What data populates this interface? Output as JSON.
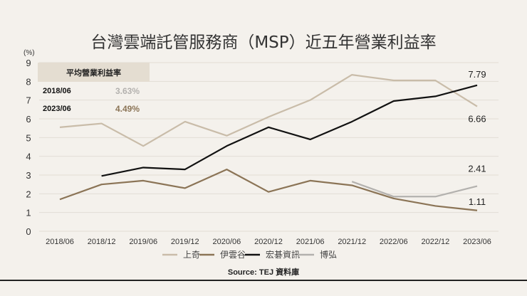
{
  "chart_data": {
    "type": "line",
    "title": "台灣雲端託管服務商（MSP）近五年營業利益率",
    "ylabel": "(%)",
    "xlabel": "",
    "ylim": [
      0,
      9
    ],
    "yticks": [
      0,
      1,
      2,
      3,
      4,
      5,
      6,
      7,
      8,
      9
    ],
    "grid": true,
    "legend_placement": "bottom",
    "categories": [
      "2018/06",
      "2018/12",
      "2019/06",
      "2019/12",
      "2020/06",
      "2020/12",
      "2021/06",
      "2021/12",
      "2022/06",
      "2022/12",
      "2023/06"
    ],
    "series": [
      {
        "name": "上奇",
        "color": "#c9bca9",
        "values": [
          5.55,
          5.75,
          4.55,
          5.85,
          5.1,
          6.1,
          7.0,
          8.35,
          8.05,
          8.05,
          6.66
        ],
        "end_label": "6.66"
      },
      {
        "name": "伊雲谷",
        "color": "#8b7456",
        "values": [
          1.7,
          2.5,
          2.7,
          2.3,
          3.3,
          2.1,
          2.7,
          2.45,
          1.75,
          1.35,
          1.11
        ],
        "end_label": "1.11"
      },
      {
        "name": "宏碁資訊",
        "color": "#111111",
        "values": [
          null,
          2.95,
          3.4,
          3.3,
          4.55,
          5.55,
          4.9,
          5.85,
          6.95,
          7.2,
          7.79
        ],
        "end_label": "7.79"
      },
      {
        "name": "博弘",
        "color": "#b3b1ae",
        "values": [
          null,
          null,
          null,
          null,
          null,
          null,
          null,
          2.65,
          1.85,
          1.85,
          2.41
        ],
        "end_label": "2.41"
      }
    ],
    "source": "Source: TEJ 資料庫",
    "inset": {
      "header": "平均營業利益率",
      "rows": [
        {
          "label": "2018/06",
          "value": "3.63%",
          "color": "#b3b1ae"
        },
        {
          "label": "2023/06",
          "value": "4.49%",
          "color": "#8b7456"
        }
      ]
    }
  }
}
